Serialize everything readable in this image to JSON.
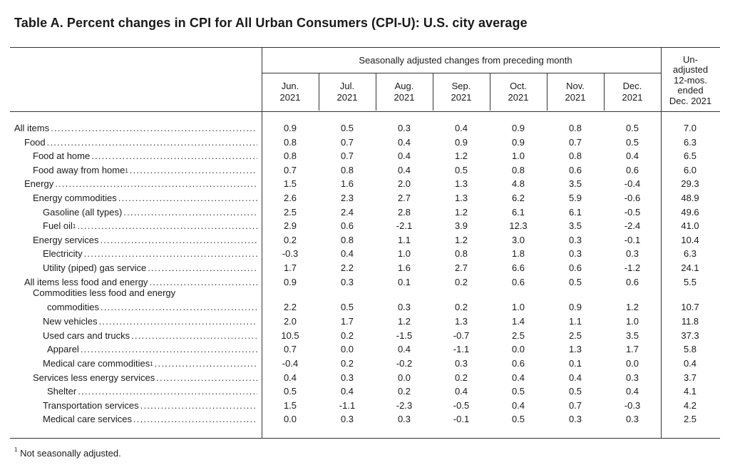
{
  "title": "Table A. Percent changes in CPI for All Urban Consumers (CPI-U): U.S. city average",
  "header": {
    "span_label": "Seasonally adjusted changes from preceding month",
    "months": [
      {
        "m": "Jun.",
        "y": "2021"
      },
      {
        "m": "Jul.",
        "y": "2021"
      },
      {
        "m": "Aug.",
        "y": "2021"
      },
      {
        "m": "Sep.",
        "y": "2021"
      },
      {
        "m": "Oct.",
        "y": "2021"
      },
      {
        "m": "Nov.",
        "y": "2021"
      },
      {
        "m": "Dec.",
        "y": "2021"
      }
    ],
    "unadjusted": [
      "Un-",
      "adjusted",
      "12-mos.",
      "ended",
      "Dec. 2021"
    ]
  },
  "rows": [
    {
      "label": "All items",
      "indent": 0,
      "values": [
        "0.9",
        "0.5",
        "0.3",
        "0.4",
        "0.9",
        "0.8",
        "0.5",
        "7.0"
      ]
    },
    {
      "label": "Food",
      "indent": 1,
      "values": [
        "0.8",
        "0.7",
        "0.4",
        "0.9",
        "0.9",
        "0.7",
        "0.5",
        "6.3"
      ]
    },
    {
      "label": "Food at home",
      "indent": 2,
      "values": [
        "0.8",
        "0.7",
        "0.4",
        "1.2",
        "1.0",
        "0.8",
        "0.4",
        "6.5"
      ]
    },
    {
      "label": "Food away from home",
      "sup": "1",
      "indent": 2,
      "values": [
        "0.7",
        "0.8",
        "0.4",
        "0.5",
        "0.8",
        "0.6",
        "0.6",
        "6.0"
      ]
    },
    {
      "label": "Energy",
      "indent": 1,
      "values": [
        "1.5",
        "1.6",
        "2.0",
        "1.3",
        "4.8",
        "3.5",
        "-0.4",
        "29.3"
      ]
    },
    {
      "label": "Energy commodities",
      "indent": 2,
      "values": [
        "2.6",
        "2.3",
        "2.7",
        "1.3",
        "6.2",
        "5.9",
        "-0.6",
        "48.9"
      ]
    },
    {
      "label": "Gasoline (all types)",
      "indent": 3,
      "values": [
        "2.5",
        "2.4",
        "2.8",
        "1.2",
        "6.1",
        "6.1",
        "-0.5",
        "49.6"
      ]
    },
    {
      "label": "Fuel oil",
      "sup": "1",
      "indent": 3,
      "values": [
        "2.9",
        "0.6",
        "-2.1",
        "3.9",
        "12.3",
        "3.5",
        "-2.4",
        "41.0"
      ]
    },
    {
      "label": "Energy services",
      "indent": 2,
      "values": [
        "0.2",
        "0.8",
        "1.1",
        "1.2",
        "3.0",
        "0.3",
        "-0.1",
        "10.4"
      ]
    },
    {
      "label": "Electricity",
      "indent": 3,
      "values": [
        "-0.3",
        "0.4",
        "1.0",
        "0.8",
        "1.8",
        "0.3",
        "0.3",
        "6.3"
      ]
    },
    {
      "label": "Utility (piped) gas service",
      "indent": 3,
      "values": [
        "1.7",
        "2.2",
        "1.6",
        "2.7",
        "6.6",
        "0.6",
        "-1.2",
        "24.1"
      ]
    },
    {
      "label": "All items less food and energy",
      "indent": 1,
      "values": [
        "0.9",
        "0.3",
        "0.1",
        "0.2",
        "0.6",
        "0.5",
        "0.6",
        "5.5"
      ]
    },
    {
      "label": "commodities",
      "label_top": "Commodities less food and energy",
      "indent": 2,
      "indent2": 4,
      "values": [
        "2.2",
        "0.5",
        "0.3",
        "0.2",
        "1.0",
        "0.9",
        "1.2",
        "10.7"
      ]
    },
    {
      "label": "New vehicles",
      "indent": 3,
      "values": [
        "2.0",
        "1.7",
        "1.2",
        "1.3",
        "1.4",
        "1.1",
        "1.0",
        "11.8"
      ]
    },
    {
      "label": "Used cars and trucks",
      "indent": 3,
      "values": [
        "10.5",
        "0.2",
        "-1.5",
        "-0.7",
        "2.5",
        "2.5",
        "3.5",
        "37.3"
      ]
    },
    {
      "label": "Apparel",
      "indent": 4,
      "values": [
        "0.7",
        "0.0",
        "0.4",
        "-1.1",
        "0.0",
        "1.3",
        "1.7",
        "5.8"
      ]
    },
    {
      "label": "Medical care commodities",
      "sup": "1",
      "indent": 3,
      "values": [
        "-0.4",
        "0.2",
        "-0.2",
        "0.3",
        "0.6",
        "0.1",
        "0.0",
        "0.4"
      ]
    },
    {
      "label": "Services less energy services",
      "indent": 2,
      "values": [
        "0.4",
        "0.3",
        "0.0",
        "0.2",
        "0.4",
        "0.4",
        "0.3",
        "3.7"
      ]
    },
    {
      "label": "Shelter",
      "indent": 4,
      "values": [
        "0.5",
        "0.4",
        "0.2",
        "0.4",
        "0.5",
        "0.5",
        "0.4",
        "4.1"
      ]
    },
    {
      "label": "Transportation services",
      "indent": 3,
      "values": [
        "1.5",
        "-1.1",
        "-2.3",
        "-0.5",
        "0.4",
        "0.7",
        "-0.3",
        "4.2"
      ]
    },
    {
      "label": "Medical care services",
      "indent": 3,
      "values": [
        "0.0",
        "0.3",
        "0.3",
        "-0.1",
        "0.5",
        "0.3",
        "0.3",
        "2.5"
      ]
    }
  ],
  "footnote": {
    "mark": "1",
    "text": "Not seasonally adjusted."
  }
}
